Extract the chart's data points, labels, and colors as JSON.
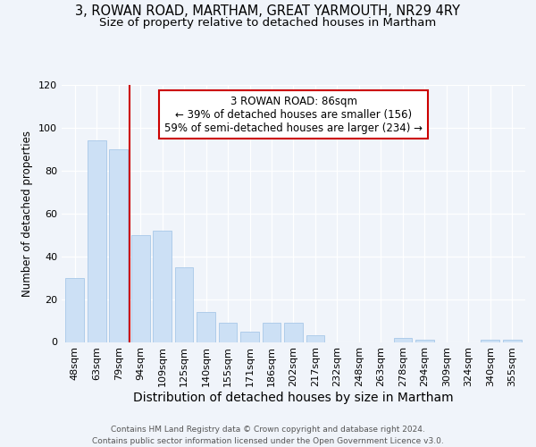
{
  "title1": "3, ROWAN ROAD, MARTHAM, GREAT YARMOUTH, NR29 4RY",
  "title2": "Size of property relative to detached houses in Martham",
  "xlabel": "Distribution of detached houses by size in Martham",
  "ylabel": "Number of detached properties",
  "footer1": "Contains HM Land Registry data © Crown copyright and database right 2024.",
  "footer2": "Contains public sector information licensed under the Open Government Licence v3.0.",
  "categories": [
    "48sqm",
    "63sqm",
    "79sqm",
    "94sqm",
    "109sqm",
    "125sqm",
    "140sqm",
    "155sqm",
    "171sqm",
    "186sqm",
    "202sqm",
    "217sqm",
    "232sqm",
    "248sqm",
    "263sqm",
    "278sqm",
    "294sqm",
    "309sqm",
    "324sqm",
    "340sqm",
    "355sqm"
  ],
  "values": [
    30,
    94,
    90,
    50,
    52,
    35,
    14,
    9,
    5,
    9,
    9,
    3,
    0,
    0,
    0,
    2,
    1,
    0,
    0,
    1,
    1
  ],
  "bar_color": "#cce0f5",
  "bar_edge_color": "#a8c8e8",
  "vline_x": 2.5,
  "vline_color": "#cc0000",
  "annotation_line1": "3 ROWAN ROAD: 86sqm",
  "annotation_line2": "← 39% of detached houses are smaller (156)",
  "annotation_line3": "59% of semi-detached houses are larger (234) →",
  "annotation_box_facecolor": "#ffffff",
  "annotation_box_edgecolor": "#cc0000",
  "ylim_max": 120,
  "yticks": [
    0,
    20,
    40,
    60,
    80,
    100,
    120
  ],
  "fig_bg_color": "#f0f4fa",
  "plot_bg_color": "#f0f4fa",
  "grid_color": "#ffffff",
  "title1_fontsize": 10.5,
  "title2_fontsize": 9.5,
  "xlabel_fontsize": 10,
  "ylabel_fontsize": 8.5,
  "tick_fontsize": 8,
  "footer_fontsize": 6.5,
  "ann_fontsize": 8.5
}
